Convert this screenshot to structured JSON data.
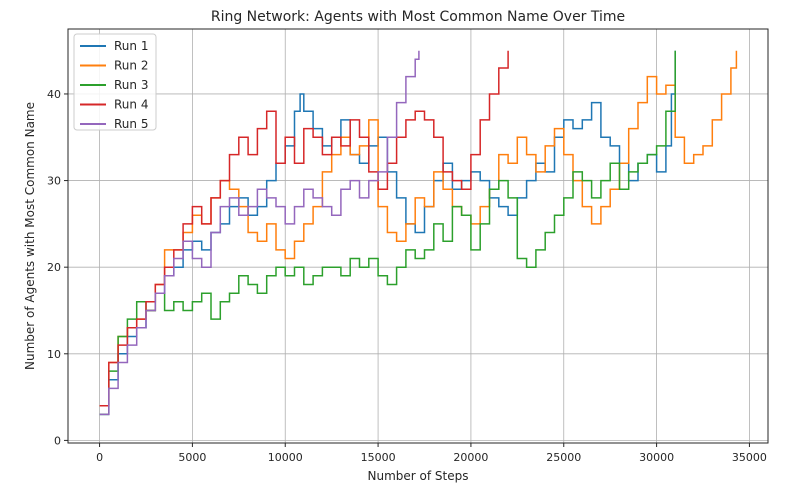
{
  "chart_data": {
    "type": "line",
    "title": "Ring Network: Agents with Most Common Name Over Time",
    "xlabel": "Number of Steps",
    "ylabel": "Number of Agents with Most Common Name",
    "xlim": [
      -1700,
      36000
    ],
    "ylim": [
      -0.3,
      47.5
    ],
    "xticks": [
      0,
      5000,
      10000,
      15000,
      20000,
      25000,
      30000,
      35000
    ],
    "xtick_labels": [
      "0",
      "5000",
      "10000",
      "15000",
      "20000",
      "25000",
      "30000",
      "35000"
    ],
    "yticks": [
      0,
      10,
      20,
      30,
      40
    ],
    "ytick_labels": [
      "0",
      "10",
      "20",
      "30",
      "40"
    ],
    "grid": true,
    "legend_position": "top-left",
    "series": [
      {
        "name": "Run 1",
        "color": "#1f77b4",
        "x": [
          0,
          500,
          1000,
          1500,
          2000,
          2500,
          3000,
          3500,
          4000,
          4500,
          5000,
          5500,
          6000,
          6500,
          7000,
          7500,
          8000,
          8500,
          9000,
          9500,
          10000,
          10500,
          10800,
          11000,
          11500,
          12000,
          12500,
          13000,
          13500,
          14000,
          14500,
          15000,
          15500,
          16000,
          16500,
          17000,
          17500,
          18000,
          18500,
          19000,
          19500,
          20000,
          20500,
          21000,
          21500,
          22000,
          22500,
          23000,
          23500,
          24000,
          24500,
          25000,
          25500,
          26000,
          26500,
          27000,
          27500,
          28000,
          28500,
          29000,
          29500,
          30000,
          30500,
          30800,
          31000
        ],
        "values": [
          3,
          7,
          10,
          12,
          13,
          15,
          17,
          19,
          20,
          22,
          23,
          22,
          24,
          25,
          27,
          28,
          26,
          27,
          30,
          32,
          34,
          38,
          40,
          38,
          36,
          34,
          35,
          37,
          33,
          32,
          34,
          35,
          31,
          28,
          25,
          24,
          27,
          30,
          32,
          29,
          30,
          31,
          30,
          28,
          27,
          26,
          28,
          30,
          32,
          31,
          35,
          37,
          36,
          37,
          39,
          35,
          34,
          32,
          30,
          32,
          33,
          31,
          34,
          40,
          45
        ]
      },
      {
        "name": "Run 2",
        "color": "#ff7f0e",
        "x": [
          0,
          500,
          1000,
          1500,
          2000,
          2500,
          3000,
          3500,
          4000,
          4500,
          5000,
          5500,
          6000,
          6500,
          7000,
          7500,
          8000,
          8500,
          9000,
          9500,
          10000,
          10500,
          11000,
          11500,
          12000,
          12500,
          13000,
          13500,
          14000,
          14500,
          15000,
          15500,
          16000,
          16500,
          17000,
          17500,
          18000,
          18500,
          19000,
          19500,
          20000,
          20500,
          21000,
          21500,
          22000,
          22500,
          23000,
          23500,
          24000,
          24500,
          25000,
          25500,
          26000,
          26500,
          27000,
          27500,
          28000,
          28500,
          29000,
          29500,
          30000,
          30500,
          31000,
          31500,
          32000,
          32500,
          33000,
          33500,
          34000,
          34300
        ],
        "values": [
          4,
          9,
          12,
          13,
          14,
          15,
          18,
          22,
          22,
          24,
          26,
          25,
          28,
          30,
          29,
          27,
          24,
          23,
          25,
          22,
          21,
          23,
          25,
          27,
          31,
          33,
          35,
          33,
          34,
          37,
          27,
          24,
          23,
          25,
          28,
          27,
          31,
          29,
          27,
          26,
          25,
          27,
          29,
          33,
          32,
          35,
          33,
          31,
          34,
          36,
          33,
          30,
          27,
          25,
          27,
          29,
          32,
          36,
          39,
          42,
          40,
          41,
          35,
          32,
          33,
          34,
          37,
          40,
          43,
          45
        ]
      },
      {
        "name": "Run 3",
        "color": "#2ca02c",
        "x": [
          0,
          500,
          1000,
          1500,
          2000,
          2500,
          3000,
          3500,
          4000,
          4500,
          5000,
          5500,
          6000,
          6500,
          7000,
          7500,
          8000,
          8500,
          9000,
          9500,
          10000,
          10500,
          11000,
          11500,
          12000,
          12500,
          13000,
          13500,
          14000,
          14500,
          15000,
          15500,
          16000,
          16500,
          17000,
          17500,
          18000,
          18500,
          19000,
          19500,
          20000,
          20500,
          21000,
          21500,
          22000,
          22500,
          23000,
          23500,
          24000,
          24500,
          25000,
          25500,
          26000,
          26500,
          27000,
          27500,
          28000,
          28500,
          29000,
          29500,
          30000,
          30500,
          31000
        ],
        "values": [
          3,
          8,
          12,
          14,
          16,
          15,
          17,
          15,
          16,
          15,
          16,
          17,
          14,
          16,
          17,
          19,
          18,
          17,
          19,
          20,
          19,
          20,
          18,
          19,
          20,
          20,
          19,
          21,
          20,
          21,
          19,
          18,
          20,
          22,
          21,
          22,
          25,
          23,
          27,
          26,
          22,
          25,
          29,
          30,
          28,
          21,
          20,
          22,
          24,
          26,
          28,
          31,
          30,
          28,
          30,
          32,
          29,
          31,
          32,
          33,
          34,
          38,
          45
        ]
      },
      {
        "name": "Run 4",
        "color": "#d62728",
        "x": [
          0,
          500,
          1000,
          1500,
          2000,
          2500,
          3000,
          3500,
          4000,
          4500,
          5000,
          5500,
          6000,
          6500,
          7000,
          7500,
          8000,
          8500,
          9000,
          9500,
          10000,
          10500,
          11000,
          11500,
          12000,
          12500,
          13000,
          13500,
          14000,
          14500,
          15000,
          15500,
          16000,
          16500,
          17000,
          17500,
          18000,
          18500,
          19000,
          19500,
          20000,
          20500,
          21000,
          21500,
          22000
        ],
        "values": [
          4,
          9,
          11,
          13,
          14,
          16,
          18,
          20,
          22,
          25,
          27,
          25,
          28,
          30,
          33,
          35,
          33,
          36,
          38,
          32,
          35,
          32,
          36,
          35,
          33,
          35,
          34,
          37,
          35,
          31,
          29,
          32,
          35,
          37,
          38,
          37,
          35,
          31,
          30,
          29,
          33,
          37,
          40,
          43,
          45
        ]
      },
      {
        "name": "Run 5",
        "color": "#9467bd",
        "x": [
          0,
          500,
          1000,
          1500,
          2000,
          2500,
          3000,
          3500,
          4000,
          4500,
          5000,
          5500,
          6000,
          6500,
          7000,
          7500,
          8000,
          8500,
          9000,
          9500,
          10000,
          10500,
          11000,
          11500,
          12000,
          12500,
          13000,
          13500,
          14000,
          14500,
          15000,
          15500,
          16000,
          16500,
          17000,
          17200
        ],
        "values": [
          3,
          6,
          9,
          11,
          13,
          15,
          17,
          19,
          21,
          23,
          21,
          20,
          24,
          27,
          28,
          26,
          27,
          29,
          28,
          27,
          25,
          27,
          29,
          28,
          27,
          26,
          29,
          30,
          28,
          30,
          31,
          35,
          39,
          42,
          44,
          45
        ]
      }
    ]
  }
}
